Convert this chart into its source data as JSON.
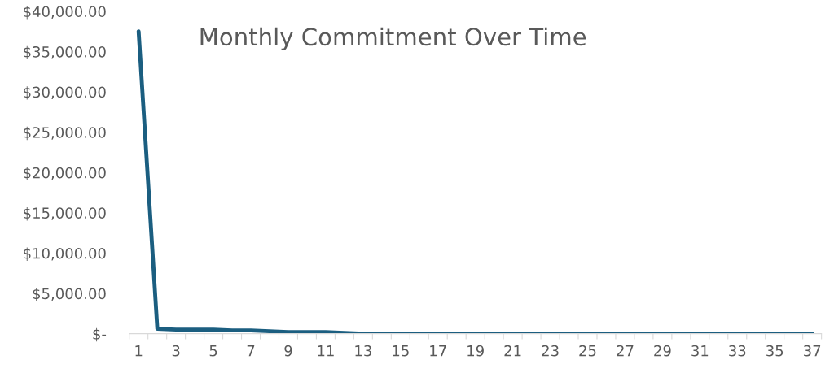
{
  "chart_data": {
    "type": "line",
    "title": "Monthly Commitment Over Time",
    "categories": [
      "1",
      null,
      "3",
      null,
      "5",
      null,
      "7",
      null,
      "9",
      null,
      "11",
      null,
      "13",
      null,
      "15",
      null,
      "17",
      null,
      "19",
      null,
      "21",
      null,
      "23",
      null,
      "25",
      null,
      "27",
      null,
      "29",
      null,
      "31",
      null,
      "33",
      null,
      "35",
      null,
      "37"
    ],
    "series": [
      {
        "color": "#1b5e80",
        "values": [
          37500,
          600,
          500,
          500,
          500,
          400,
          400,
          300,
          200,
          200,
          200,
          100,
          0,
          0,
          0,
          0,
          0,
          0,
          0,
          0,
          0,
          0,
          0,
          0,
          0,
          0,
          0,
          0,
          0,
          0,
          0,
          0,
          0,
          0,
          0,
          0,
          0
        ]
      }
    ],
    "ylim": [
      0,
      40000
    ],
    "yticks": [
      {
        "value": 0,
        "label": "$-"
      },
      {
        "value": 5000,
        "label": "$5,000.00"
      },
      {
        "value": 10000,
        "label": "$10,000.00"
      },
      {
        "value": 15000,
        "label": "$15,000.00"
      },
      {
        "value": 20000,
        "label": "$20,000.00"
      },
      {
        "value": 25000,
        "label": "$25,000.00"
      },
      {
        "value": 30000,
        "label": "$30,000.00"
      },
      {
        "value": 35000,
        "label": "$35,000.00"
      },
      {
        "value": 40000,
        "label": "$40,000.00"
      }
    ],
    "grid": false,
    "legend": false,
    "marker": "none",
    "line_style": "solid"
  }
}
